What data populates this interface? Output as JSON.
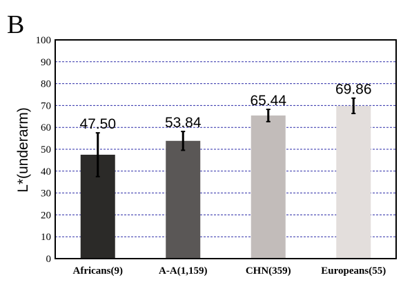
{
  "panel_label": "B",
  "chart_data": {
    "type": "bar",
    "title": "",
    "xlabel": "",
    "ylabel": "L*(underarm)",
    "ylim": [
      0,
      100
    ],
    "yticks": [
      "0",
      "10",
      "20",
      "30",
      "40",
      "50",
      "60",
      "70",
      "80",
      "90",
      "100"
    ],
    "grid": true,
    "categories": [
      "Africans(9)",
      "A-A(1,159)",
      "CHN(359)",
      "Europeans(55)"
    ],
    "values": [
      47.5,
      53.84,
      65.44,
      69.86
    ],
    "value_labels": [
      "47.50",
      "53.84",
      "65.44",
      "69.86"
    ],
    "error": [
      10.0,
      4.3,
      2.8,
      3.5
    ],
    "colors": [
      "#2b2a28",
      "#5a5756",
      "#c2bcba",
      "#e3dedc"
    ],
    "grid_color": "#2a2aa8"
  }
}
